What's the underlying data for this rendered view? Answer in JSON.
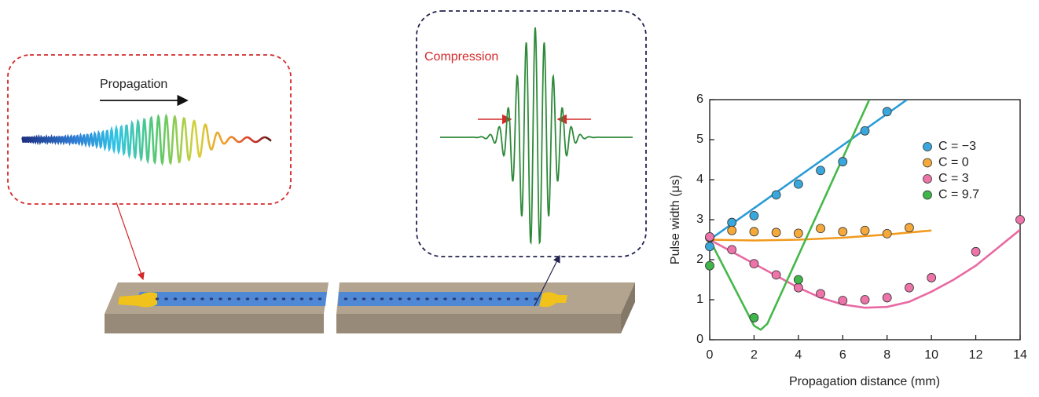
{
  "diagram": {
    "propagation_label": "Propagation",
    "compression_label": "Compression"
  },
  "chart_data": {
    "type": "scatter",
    "xlabel": "Propagation distance (mm)",
    "ylabel": "Pulse width (μs)",
    "xlim": [
      0,
      14
    ],
    "ylim": [
      0,
      6
    ],
    "xticks": [
      0,
      2,
      4,
      6,
      8,
      10,
      12,
      14
    ],
    "yticks": [
      0,
      1,
      2,
      3,
      4,
      5,
      6
    ],
    "legend": "upper right",
    "series": [
      {
        "name": "C = −3",
        "color": "#3aa7dc",
        "line_color": "#2a9bd6",
        "x": [
          0,
          1,
          2,
          3,
          4,
          5,
          6,
          7,
          8
        ],
        "values": [
          2.33,
          2.93,
          3.1,
          3.62,
          3.89,
          4.23,
          4.45,
          5.22,
          5.7
        ],
        "fit": {
          "x": [
            0,
            8.9
          ],
          "values": [
            2.5,
            6
          ]
        }
      },
      {
        "name": "C = 0",
        "color": "#f4a93a",
        "line_color": "#f29a1e",
        "x": [
          0,
          1,
          2,
          3,
          4,
          5,
          6,
          7,
          8,
          9
        ],
        "values": [
          2.55,
          2.73,
          2.7,
          2.68,
          2.66,
          2.78,
          2.7,
          2.73,
          2.65,
          2.8
        ],
        "fit": {
          "x": [
            0,
            2,
            4,
            6,
            8,
            10
          ],
          "values": [
            2.5,
            2.48,
            2.5,
            2.55,
            2.63,
            2.73
          ]
        }
      },
      {
        "name": "C = 3",
        "color": "#ec74a8",
        "line_color": "#e86aa3",
        "x": [
          0,
          1,
          2,
          3,
          4,
          5,
          6,
          7,
          8,
          9,
          10,
          12,
          14
        ],
        "values": [
          2.57,
          2.25,
          1.9,
          1.62,
          1.3,
          1.15,
          0.98,
          1.0,
          1.05,
          1.3,
          1.55,
          2.2,
          3.0
        ],
        "fit": {
          "x": [
            0,
            1,
            2,
            3,
            4,
            5,
            6,
            7,
            8,
            9,
            10,
            11,
            12,
            13,
            14
          ],
          "values": [
            2.5,
            2.2,
            1.9,
            1.6,
            1.3,
            1.05,
            0.88,
            0.8,
            0.82,
            0.95,
            1.2,
            1.5,
            1.85,
            2.3,
            2.75
          ]
        }
      },
      {
        "name": "C = 9.7",
        "color": "#3fb54a",
        "line_color": "#45b84a",
        "x": [
          0,
          2,
          4
        ],
        "values": [
          1.85,
          0.55,
          1.5
        ],
        "fit": {
          "x": [
            0,
            2,
            2.3,
            2.6,
            7.2
          ],
          "values": [
            2.5,
            0.35,
            0.25,
            0.4,
            6
          ]
        }
      }
    ]
  }
}
